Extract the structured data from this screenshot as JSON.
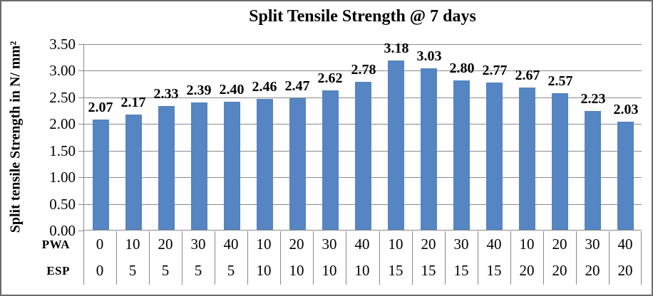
{
  "chart_data": {
    "type": "bar",
    "title": "Split Tensile Strength @ 7 days",
    "ylabel": "Split tensile Strength in N/ mm²",
    "ylim": [
      0,
      3.5
    ],
    "ytick_step": 0.5,
    "y_tick_labels": [
      "0.00",
      "0.50",
      "1.00",
      "1.50",
      "2.00",
      "2.50",
      "3.00",
      "3.50"
    ],
    "grid": true,
    "legend": "none",
    "bar_color": "#5585C2",
    "values": [
      2.07,
      2.17,
      2.33,
      2.39,
      2.4,
      2.46,
      2.47,
      2.62,
      2.78,
      3.18,
      3.03,
      2.8,
      2.77,
      2.67,
      2.57,
      2.23,
      2.03
    ],
    "value_labels": [
      "2.07",
      "2.17",
      "2.33",
      "2.39",
      "2.40",
      "2.46",
      "2.47",
      "2.62",
      "2.78",
      "3.18",
      "3.03",
      "2.80",
      "2.77",
      "2.67",
      "2.57",
      "2.23",
      "2.03"
    ],
    "x_rows": [
      {
        "label": "PWA",
        "values": [
          "0",
          "10",
          "20",
          "30",
          "40",
          "10",
          "20",
          "30",
          "40",
          "10",
          "20",
          "30",
          "40",
          "10",
          "20",
          "30",
          "40"
        ]
      },
      {
        "label": "ESP",
        "values": [
          "0",
          "5",
          "5",
          "5",
          "5",
          "10",
          "10",
          "10",
          "10",
          "15",
          "15",
          "15",
          "15",
          "20",
          "20",
          "20",
          "20"
        ]
      }
    ]
  }
}
